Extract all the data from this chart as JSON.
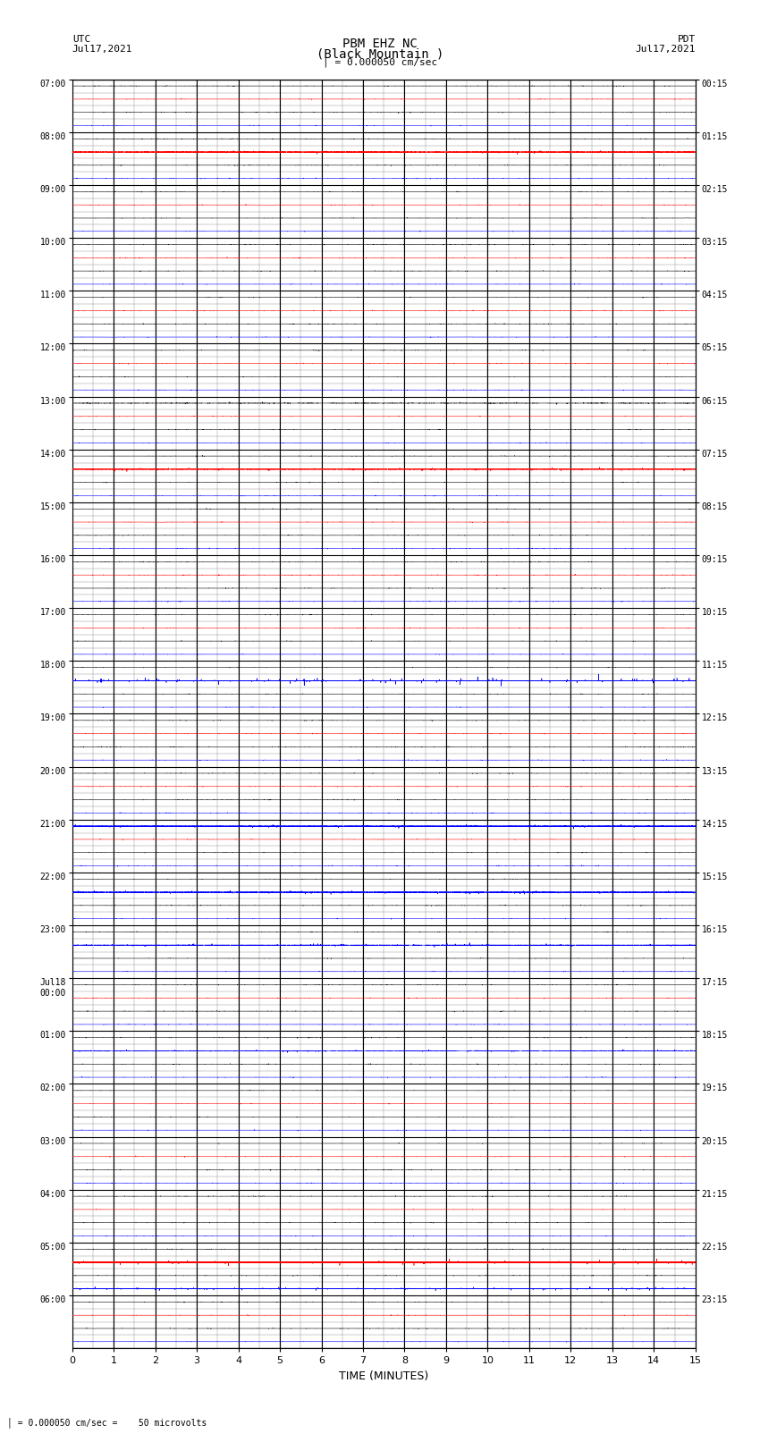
{
  "title_line1": "PBM EHZ NC",
  "title_line2": "(Black Mountain )",
  "title_scale": "| = 0.000050 cm/sec",
  "left_label": "UTC",
  "left_date": "Jul17,2021",
  "right_label": "PDT",
  "right_date": "Jul17,2021",
  "xlabel": "TIME (MINUTES)",
  "bottom_note": "= 0.000050 cm/sec =    50 microvolts",
  "utc_times": [
    "07:00",
    "08:00",
    "09:00",
    "10:00",
    "11:00",
    "12:00",
    "13:00",
    "14:00",
    "15:00",
    "16:00",
    "17:00",
    "18:00",
    "19:00",
    "20:00",
    "21:00",
    "22:00",
    "23:00",
    "Jul18\n00:00",
    "01:00",
    "02:00",
    "03:00",
    "04:00",
    "05:00",
    "06:00"
  ],
  "pdt_times": [
    "00:15",
    "01:15",
    "02:15",
    "03:15",
    "04:15",
    "05:15",
    "06:15",
    "07:15",
    "08:15",
    "09:15",
    "10:15",
    "11:15",
    "12:15",
    "13:15",
    "14:15",
    "15:15",
    "16:15",
    "17:15",
    "18:15",
    "19:15",
    "20:15",
    "21:15",
    "22:15",
    "23:15"
  ],
  "n_rows": 24,
  "n_subrows": 4,
  "n_minutes": 15,
  "sample_rate": 50,
  "background_color": "#ffffff",
  "trace_color_normal": "#000000",
  "trace_color_blue": "#0000ff",
  "trace_color_red": "#ff0000",
  "trace_color_green": "#008000",
  "grid_color_major": "#000000",
  "grid_color_minor": "#888888",
  "subrow_colors": [
    "#000000",
    "#ff0000",
    "#000000",
    "#0000ff"
  ],
  "special_row_17_color": "#0000ff",
  "special_row_22_color": "#0000ff",
  "special_row_25_color": "#0000ff",
  "amplitude_base": 0.03,
  "amplitude_scale": 0.08
}
